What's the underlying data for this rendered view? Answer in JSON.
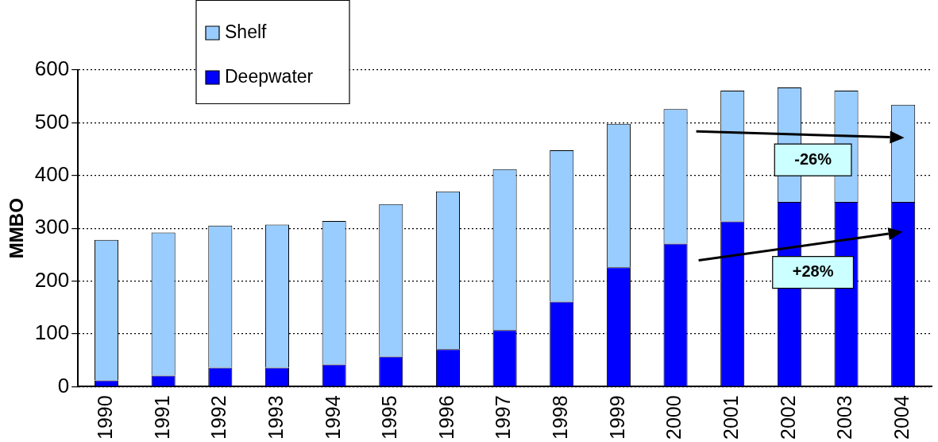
{
  "chart_data": {
    "type": "bar",
    "stacked": true,
    "ylabel": "MMBO",
    "categories": [
      "1990",
      "1991",
      "1992",
      "1993",
      "1994",
      "1995",
      "1996",
      "1997",
      "1998",
      "1999",
      "2000",
      "2001",
      "2002",
      "2003",
      "2004"
    ],
    "series": [
      {
        "name": "Deepwater",
        "color": "#0000ff",
        "values": [
          12,
          21,
          36,
          36,
          42,
          57,
          71,
          107,
          161,
          226,
          271,
          313,
          350,
          350,
          350
        ]
      },
      {
        "name": "Shelf",
        "color": "#99ccff",
        "values": [
          266,
          271,
          269,
          271,
          272,
          289,
          299,
          305,
          287,
          272,
          255,
          248,
          217,
          211,
          184
        ]
      }
    ],
    "ylim": [
      0,
      600
    ],
    "yticks": [
      0,
      100,
      200,
      300,
      400,
      500,
      600
    ],
    "grid": "y",
    "legend": "top left",
    "annotations": [
      "-26%",
      "+28%"
    ]
  }
}
